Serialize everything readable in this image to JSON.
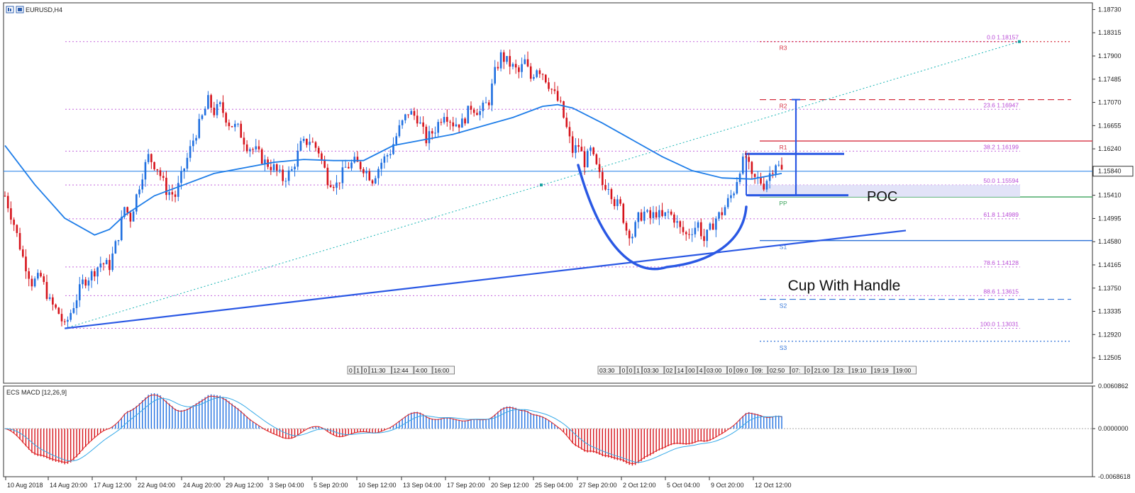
{
  "title": "EURUSD,H4",
  "colors": {
    "up": "#1f6fe0",
    "down": "#d6131b",
    "ma": "#1e7de8",
    "fib": "#b94bd6",
    "fib_label": "#b94bd6",
    "pivot_red": "#d63040",
    "pivot_green": "#3aa35a",
    "pivot_blue": "#3476d9",
    "drawing": "#2a58e4",
    "poc_band": "#dfe0f7",
    "macd_main": "#e02020",
    "macd_signal": "#34a9e8",
    "hist_up": "#1f6fe0",
    "hist_down": "#d6131b",
    "grid": "#e6e6e6"
  },
  "current_price": "1.15840",
  "annotations": {
    "cup": "Cup With Handle",
    "poc": "POC"
  },
  "chart_data": [
    {
      "type": "line",
      "name": "price",
      "ylim": [
        1.1205,
        1.1885
      ],
      "y_ticks": [
        "1.18730",
        "1.18315",
        "1.17900",
        "1.17485",
        "1.17070",
        "1.16655",
        "1.16240",
        "1.15840",
        "1.15410",
        "1.14995",
        "1.14580",
        "1.14165",
        "1.13750",
        "1.13335",
        "1.12920",
        "1.12505"
      ],
      "x_labels": [
        "10 Aug 2018",
        "14 Aug 20:00",
        "17 Aug 12:00",
        "22 Aug 04:00",
        "24 Aug 20:00",
        "29 Aug 12:00",
        "3 Sep 04:00",
        "5 Sep 20:00",
        "10 Sep 12:00",
        "13 Sep 04:00",
        "17 Sep 20:00",
        "20 Sep 12:00",
        "25 Sep 04:00",
        "27 Sep 20:00",
        "2 Oct 12:00",
        "5 Oct 04:00",
        "9 Oct 20:00",
        "12 Oct 12:00"
      ],
      "close_path": [
        [
          0,
          1.154
        ],
        [
          3,
          1.149
        ],
        [
          6,
          1.143
        ],
        [
          9,
          1.1385
        ],
        [
          12,
          1.1395
        ],
        [
          15,
          1.135
        ],
        [
          18,
          1.133
        ],
        [
          20,
          1.1305
        ],
        [
          23,
          1.1345
        ],
        [
          26,
          1.1385
        ],
        [
          29,
          1.14
        ],
        [
          32,
          1.142
        ],
        [
          35,
          1.1415
        ],
        [
          38,
          1.147
        ],
        [
          40,
          1.152
        ],
        [
          42,
          1.15
        ],
        [
          44,
          1.154
        ],
        [
          46,
          1.158
        ],
        [
          48,
          1.161
        ],
        [
          51,
          1.159
        ],
        [
          54,
          1.155
        ],
        [
          57,
          1.154
        ],
        [
          60,
          1.159
        ],
        [
          63,
          1.164
        ],
        [
          66,
          1.168
        ],
        [
          68,
          1.171
        ],
        [
          70,
          1.169
        ],
        [
          72,
          1.17
        ],
        [
          75,
          1.167
        ],
        [
          78,
          1.166
        ],
        [
          81,
          1.163
        ],
        [
          84,
          1.162
        ],
        [
          87,
          1.16
        ],
        [
          90,
          1.159
        ],
        [
          93,
          1.157
        ],
        [
          96,
          1.1585
        ],
        [
          99,
          1.163
        ],
        [
          102,
          1.164
        ],
        [
          105,
          1.162
        ],
        [
          108,
          1.157
        ],
        [
          111,
          1.156
        ],
        [
          114,
          1.159
        ],
        [
          117,
          1.16
        ],
        [
          120,
          1.159
        ],
        [
          123,
          1.157
        ],
        [
          126,
          1.16
        ],
        [
          129,
          1.162
        ],
        [
          132,
          1.166
        ],
        [
          135,
          1.169
        ],
        [
          138,
          1.168
        ],
        [
          141,
          1.164
        ],
        [
          144,
          1.166
        ],
        [
          147,
          1.169
        ],
        [
          150,
          1.167
        ],
        [
          153,
          1.167
        ],
        [
          156,
          1.17
        ],
        [
          159,
          1.169
        ],
        [
          162,
          1.171
        ],
        [
          164,
          1.176
        ],
        [
          166,
          1.179
        ],
        [
          168,
          1.178
        ],
        [
          170,
          1.177
        ],
        [
          172,
          1.176
        ],
        [
          174,
          1.178
        ],
        [
          176,
          1.175
        ],
        [
          178,
          1.177
        ],
        [
          180,
          1.176
        ],
        [
          183,
          1.173
        ],
        [
          186,
          1.17
        ],
        [
          188,
          1.166
        ],
        [
          190,
          1.162
        ],
        [
          192,
          1.163
        ],
        [
          194,
          1.16
        ],
        [
          196,
          1.162
        ],
        [
          198,
          1.159
        ],
        [
          200,
          1.156
        ],
        [
          202,
          1.156
        ],
        [
          204,
          1.153
        ],
        [
          206,
          1.152
        ],
        [
          208,
          1.148
        ],
        [
          210,
          1.147
        ],
        [
          212,
          1.15
        ],
        [
          214,
          1.151
        ],
        [
          216,
          1.15
        ],
        [
          218,
          1.151
        ],
        [
          220,
          1.15
        ],
        [
          222,
          1.151
        ],
        [
          224,
          1.15
        ],
        [
          226,
          1.148
        ],
        [
          228,
          1.147
        ],
        [
          230,
          1.148
        ],
        [
          232,
          1.149
        ],
        [
          234,
          1.146
        ],
        [
          236,
          1.148
        ],
        [
          238,
          1.15
        ],
        [
          240,
          1.151
        ],
        [
          242,
          1.153
        ],
        [
          244,
          1.155
        ],
        [
          246,
          1.159
        ],
        [
          248,
          1.161
        ],
        [
          250,
          1.157
        ],
        [
          252,
          1.157
        ],
        [
          254,
          1.156
        ],
        [
          256,
          1.158
        ],
        [
          258,
          1.16
        ],
        [
          260,
          1.1584
        ]
      ],
      "ma_path": [
        [
          0,
          1.163
        ],
        [
          10,
          1.156
        ],
        [
          20,
          1.15
        ],
        [
          30,
          1.147
        ],
        [
          35,
          1.148
        ],
        [
          40,
          1.1505
        ],
        [
          50,
          1.154
        ],
        [
          60,
          1.156
        ],
        [
          70,
          1.158
        ],
        [
          80,
          1.159
        ],
        [
          90,
          1.16
        ],
        [
          100,
          1.1605
        ],
        [
          110,
          1.1603
        ],
        [
          120,
          1.1603
        ],
        [
          130,
          1.163
        ],
        [
          140,
          1.164
        ],
        [
          150,
          1.165
        ],
        [
          160,
          1.1665
        ],
        [
          170,
          1.168
        ],
        [
          180,
          1.17
        ],
        [
          185,
          1.1703
        ],
        [
          190,
          1.1697
        ],
        [
          200,
          1.167
        ],
        [
          210,
          1.164
        ],
        [
          220,
          1.161
        ],
        [
          230,
          1.1585
        ],
        [
          240,
          1.1572
        ],
        [
          250,
          1.157
        ],
        [
          260,
          1.158
        ]
      ],
      "candle_range": 260
    },
    {
      "type": "fibonacci",
      "levels": [
        {
          "pct": "0.0",
          "price": "1.18157"
        },
        {
          "pct": "23.6",
          "price": "1.16947"
        },
        {
          "pct": "38.2",
          "price": "1.16199"
        },
        {
          "pct": "50.0",
          "price": "1.15594"
        },
        {
          "pct": "61.8",
          "price": "1.14989"
        },
        {
          "pct": "78.6",
          "price": "1.14128"
        },
        {
          "pct": "88.6",
          "price": "1.13615"
        },
        {
          "pct": "100.0",
          "price": "1.13031"
        }
      ]
    },
    {
      "type": "pivots",
      "levels": [
        {
          "name": "R3",
          "price": 1.18157,
          "style": "dotted-red"
        },
        {
          "name": "R2",
          "price": 1.1712,
          "style": "dashed-red"
        },
        {
          "name": "R1",
          "price": 1.1638,
          "style": "solid-red"
        },
        {
          "name": "PP",
          "price": 1.1538,
          "style": "solid-green"
        },
        {
          "name": "S1",
          "price": 1.146,
          "style": "solid-blue"
        },
        {
          "name": "S2",
          "price": 1.1355,
          "style": "dashed-blue"
        },
        {
          "name": "S3",
          "price": 1.128,
          "style": "dotted-blue"
        }
      ]
    },
    {
      "type": "bar",
      "name": "ECS MACD [12,26,9]",
      "ylim": [
        -0.0068618,
        0.0060862
      ],
      "y_ticks": [
        "0.0060862",
        "0.0000000",
        "-0.0068618"
      ]
    }
  ],
  "session_boxes_left": [
    "0",
    "1",
    "0",
    "11:30",
    "12:44",
    "4:00",
    "16:00"
  ],
  "session_boxes_right": [
    "03:30",
    "0",
    "0",
    "1",
    "03:30",
    "02",
    "14",
    "00",
    "4",
    "03:00",
    "0",
    "09:0",
    "09:",
    "02:50",
    "07:",
    "0",
    "21:00",
    "23:",
    "19:10",
    "19:19",
    "19:00"
  ]
}
